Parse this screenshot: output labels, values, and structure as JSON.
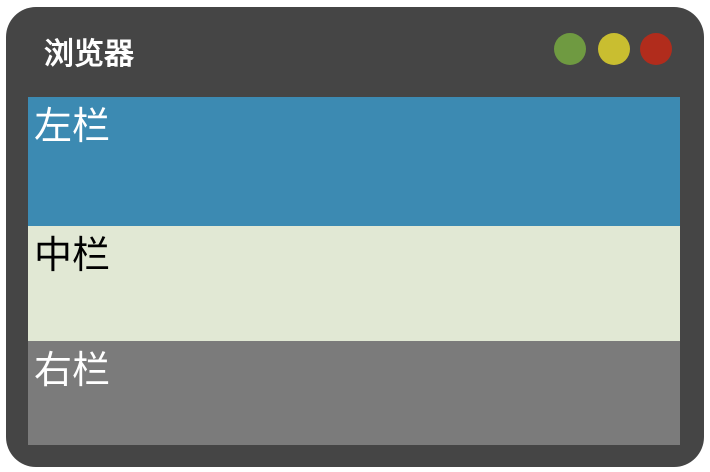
{
  "window": {
    "title": "浏览器",
    "controls": [
      {
        "name": "green",
        "color": "#6f9a41"
      },
      {
        "name": "yellow",
        "color": "#c9be30"
      },
      {
        "name": "red",
        "color": "#b12c1c"
      }
    ]
  },
  "panes": {
    "left": {
      "label": "左栏",
      "background": "#3c8ab2",
      "text_color": "#ffffff"
    },
    "middle": {
      "label": "中栏",
      "background": "#e1e8d4",
      "text_color": "#000000"
    },
    "right": {
      "label": "右栏",
      "background": "#7b7b7b",
      "text_color": "#ffffff"
    }
  }
}
